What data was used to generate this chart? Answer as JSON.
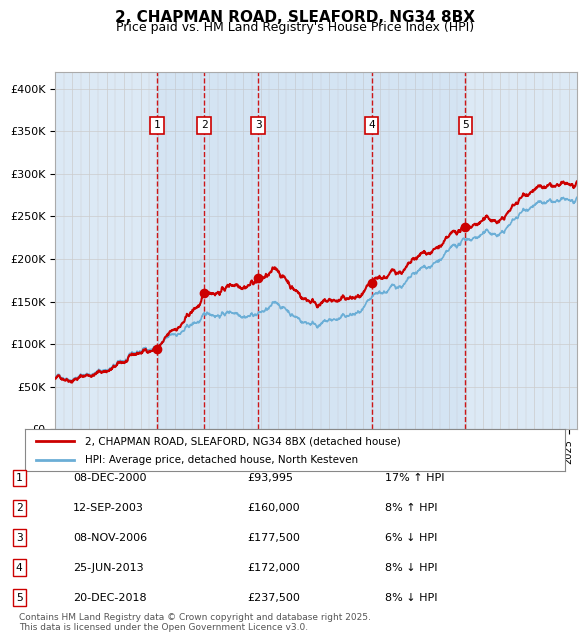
{
  "title": "2, CHAPMAN ROAD, SLEAFORD, NG34 8BX",
  "subtitle": "Price paid vs. HM Land Registry's House Price Index (HPI)",
  "footer": "Contains HM Land Registry data © Crown copyright and database right 2025.\nThis data is licensed under the Open Government Licence v3.0.",
  "legend_line1": "2, CHAPMAN ROAD, SLEAFORD, NG34 8BX (detached house)",
  "legend_line2": "HPI: Average price, detached house, North Kesteven",
  "sale_color": "#cc0000",
  "hpi_color": "#6baed6",
  "background_color": "#dce9f5",
  "plot_bg": "#ffffff",
  "grid_color": "#cccccc",
  "vline_color": "#cc0000",
  "marker_color": "#cc0000",
  "ylim": [
    0,
    420000
  ],
  "yticks": [
    0,
    50000,
    100000,
    150000,
    200000,
    250000,
    300000,
    350000,
    400000
  ],
  "ytick_labels": [
    "£0",
    "£50K",
    "£100K",
    "£150K",
    "£200K",
    "£250K",
    "£300K",
    "£350K",
    "£400K"
  ],
  "sales": [
    {
      "num": 1,
      "date": "2000-12-08",
      "x": 2000.94,
      "price": 93995,
      "label": "1"
    },
    {
      "num": 2,
      "date": "2003-09-12",
      "x": 2003.7,
      "price": 160000,
      "label": "2"
    },
    {
      "num": 3,
      "date": "2006-11-08",
      "x": 2006.86,
      "price": 177500,
      "label": "3"
    },
    {
      "num": 4,
      "date": "2013-06-25",
      "x": 2013.48,
      "price": 172000,
      "label": "4"
    },
    {
      "num": 5,
      "date": "2018-12-20",
      "x": 2018.97,
      "price": 237500,
      "label": "5"
    }
  ],
  "table_rows": [
    {
      "num": "1",
      "date": "08-DEC-2000",
      "price": "£93,995",
      "hpi_pct": "17% ↑ HPI"
    },
    {
      "num": "2",
      "date": "12-SEP-2003",
      "price": "£160,000",
      "hpi_pct": "8% ↑ HPI"
    },
    {
      "num": "3",
      "date": "08-NOV-2006",
      "price": "£177,500",
      "hpi_pct": "6% ↓ HPI"
    },
    {
      "num": "4",
      "date": "25-JUN-2013",
      "price": "£172,000",
      "hpi_pct": "8% ↓ HPI"
    },
    {
      "num": "5",
      "date": "20-DEC-2018",
      "price": "£237,500",
      "hpi_pct": "8% ↓ HPI"
    }
  ]
}
